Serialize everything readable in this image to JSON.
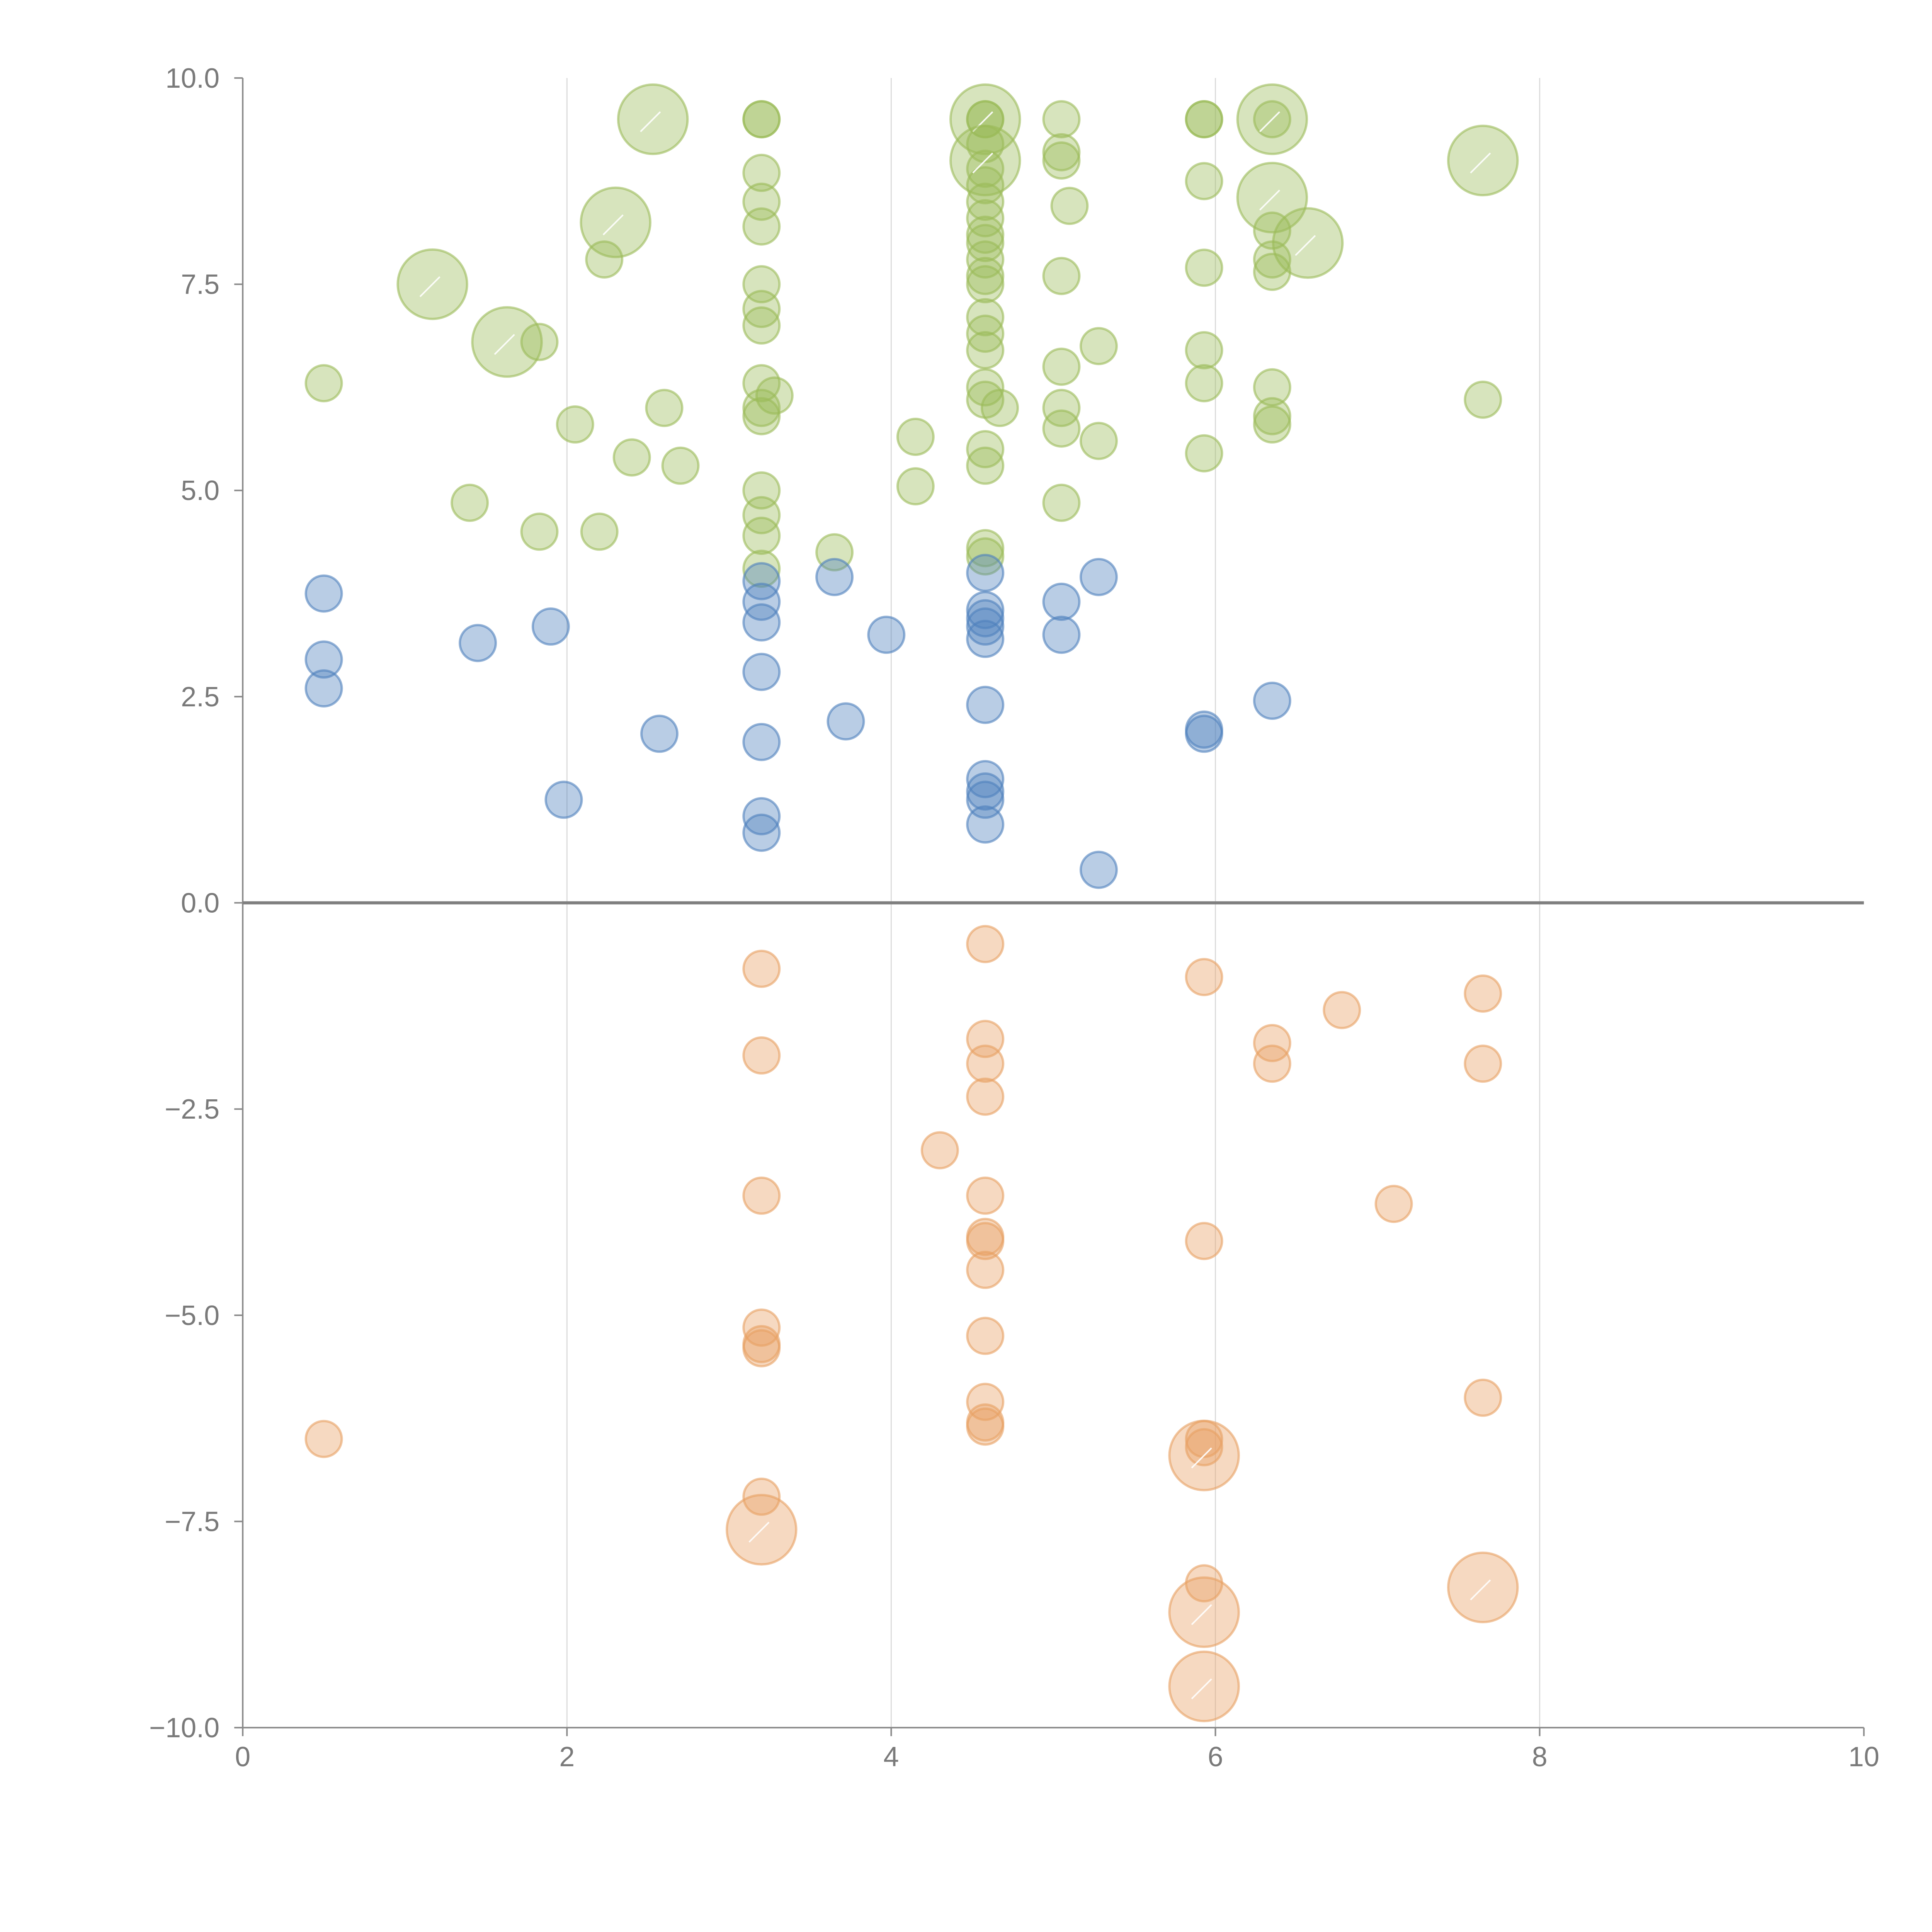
{
  "chart_data": {
    "type": "scatter",
    "title": "",
    "xlabel": "",
    "ylabel": "",
    "xlim": [
      0,
      10
    ],
    "ylim": [
      -10,
      10
    ],
    "x_ticks": [
      "0",
      "2",
      "4",
      "6",
      "8",
      "10"
    ],
    "y_ticks": [
      "10.0",
      "7.5",
      "5.0",
      "2.5",
      "0.0",
      "−2.5",
      "−5.0",
      "−7.5",
      "−10.0"
    ],
    "grid": "vertical lines at x = 2, 4, 6, 8",
    "baseline": 0,
    "colors": {
      "high": "#9bbb59",
      "mid": "#4f81bd",
      "low": "#e8a063"
    },
    "series": [
      {
        "color": "#9bbb59",
        "points": [
          [
            0.5,
            6.3
          ],
          [
            1.4,
            4.85
          ],
          [
            1.83,
            4.5
          ],
          [
            1.83,
            6.8
          ],
          [
            2.05,
            5.8
          ],
          [
            2.2,
            4.5
          ],
          [
            2.23,
            7.8
          ],
          [
            2.4,
            5.4
          ],
          [
            2.6,
            6.0
          ],
          [
            2.7,
            5.3
          ],
          [
            3.2,
            9.5
          ],
          [
            3.2,
            9.5
          ],
          [
            3.2,
            8.85
          ],
          [
            3.2,
            8.5
          ],
          [
            3.2,
            8.2
          ],
          [
            3.2,
            7.5
          ],
          [
            3.2,
            7.2
          ],
          [
            3.2,
            7.0
          ],
          [
            3.2,
            6.3
          ],
          [
            3.2,
            6.0
          ],
          [
            3.2,
            5.9
          ],
          [
            3.2,
            5.0
          ],
          [
            3.2,
            4.7
          ],
          [
            3.2,
            4.45
          ],
          [
            3.2,
            4.05
          ],
          [
            3.28,
            6.15
          ],
          [
            3.65,
            4.25
          ],
          [
            4.15,
            5.65
          ],
          [
            4.15,
            5.05
          ],
          [
            4.58,
            9.5
          ],
          [
            4.58,
            9.5
          ],
          [
            4.58,
            9.2
          ],
          [
            4.58,
            8.9
          ],
          [
            4.58,
            8.7
          ],
          [
            4.58,
            8.5
          ],
          [
            4.58,
            8.3
          ],
          [
            4.58,
            8.1
          ],
          [
            4.58,
            8.0
          ],
          [
            4.58,
            7.8
          ],
          [
            4.58,
            7.6
          ],
          [
            4.58,
            7.5
          ],
          [
            4.58,
            7.1
          ],
          [
            4.58,
            6.9
          ],
          [
            4.58,
            6.7
          ],
          [
            4.58,
            6.25
          ],
          [
            4.58,
            6.1
          ],
          [
            4.58,
            5.5
          ],
          [
            4.58,
            5.3
          ],
          [
            4.58,
            4.3
          ],
          [
            4.58,
            4.2
          ],
          [
            4.67,
            6.0
          ],
          [
            5.05,
            9.5
          ],
          [
            5.05,
            9.1
          ],
          [
            5.05,
            9.0
          ],
          [
            5.05,
            7.6
          ],
          [
            5.05,
            6.5
          ],
          [
            5.05,
            6.0
          ],
          [
            5.05,
            5.75
          ],
          [
            5.05,
            4.85
          ],
          [
            5.1,
            8.45
          ],
          [
            5.28,
            6.75
          ],
          [
            5.28,
            5.6
          ],
          [
            5.93,
            9.5
          ],
          [
            5.93,
            9.5
          ],
          [
            5.93,
            8.75
          ],
          [
            5.93,
            7.7
          ],
          [
            5.93,
            6.7
          ],
          [
            5.93,
            6.3
          ],
          [
            5.93,
            5.45
          ],
          [
            6.35,
            9.5
          ],
          [
            6.35,
            8.15
          ],
          [
            6.35,
            7.8
          ],
          [
            6.35,
            7.65
          ],
          [
            6.35,
            6.25
          ],
          [
            6.35,
            5.9
          ],
          [
            6.35,
            5.8
          ],
          [
            7.65,
            6.1
          ]
        ]
      },
      {
        "color": "#4f81bd",
        "points": [
          [
            0.5,
            3.75
          ],
          [
            0.5,
            2.95
          ],
          [
            0.5,
            2.6
          ],
          [
            1.45,
            3.15
          ],
          [
            1.9,
            3.35
          ],
          [
            1.98,
            1.25
          ],
          [
            2.57,
            2.05
          ],
          [
            3.2,
            3.9
          ],
          [
            3.2,
            3.65
          ],
          [
            3.2,
            3.4
          ],
          [
            3.2,
            2.8
          ],
          [
            3.2,
            1.95
          ],
          [
            3.2,
            1.05
          ],
          [
            3.2,
            0.85
          ],
          [
            3.65,
            3.95
          ],
          [
            3.72,
            2.2
          ],
          [
            3.97,
            3.25
          ],
          [
            4.58,
            4.0
          ],
          [
            4.58,
            3.55
          ],
          [
            4.58,
            3.45
          ],
          [
            4.58,
            3.35
          ],
          [
            4.58,
            3.2
          ],
          [
            4.58,
            2.4
          ],
          [
            4.58,
            1.5
          ],
          [
            4.58,
            1.35
          ],
          [
            4.58,
            1.25
          ],
          [
            4.58,
            0.95
          ],
          [
            5.05,
            3.65
          ],
          [
            5.05,
            3.25
          ],
          [
            5.28,
            3.95
          ],
          [
            5.28,
            0.4
          ],
          [
            5.93,
            2.1
          ],
          [
            5.93,
            2.05
          ],
          [
            6.35,
            2.45
          ]
        ]
      },
      {
        "color": "#e8a063",
        "points": [
          [
            0.5,
            -6.5
          ],
          [
            3.2,
            -0.8
          ],
          [
            3.2,
            -1.85
          ],
          [
            3.2,
            -3.55
          ],
          [
            3.2,
            -5.15
          ],
          [
            3.2,
            -5.35
          ],
          [
            3.2,
            -5.4
          ],
          [
            3.2,
            -7.2
          ],
          [
            4.3,
            -3.0
          ],
          [
            4.58,
            -0.5
          ],
          [
            4.58,
            -1.65
          ],
          [
            4.58,
            -1.95
          ],
          [
            4.58,
            -2.35
          ],
          [
            4.58,
            -3.55
          ],
          [
            4.58,
            -4.05
          ],
          [
            4.58,
            -4.1
          ],
          [
            4.58,
            -4.45
          ],
          [
            4.58,
            -5.25
          ],
          [
            4.58,
            -6.05
          ],
          [
            4.58,
            -6.3
          ],
          [
            4.58,
            -6.35
          ],
          [
            5.93,
            -0.9
          ],
          [
            5.93,
            -4.1
          ],
          [
            5.93,
            -6.5
          ],
          [
            5.93,
            -6.6
          ],
          [
            5.93,
            -8.25
          ],
          [
            6.35,
            -1.7
          ],
          [
            6.35,
            -1.95
          ],
          [
            6.78,
            -1.3
          ],
          [
            7.1,
            -3.65
          ],
          [
            7.65,
            -1.1
          ],
          [
            7.65,
            -1.95
          ],
          [
            7.65,
            -6.0
          ]
        ]
      }
    ],
    "highlighted": [
      {
        "x": 1.17,
        "y": 7.5,
        "color": "#9bbb59",
        "label": ""
      },
      {
        "x": 1.63,
        "y": 6.8,
        "color": "#9bbb59",
        "label": ""
      },
      {
        "x": 2.3,
        "y": 8.25,
        "color": "#9bbb59",
        "label": ""
      },
      {
        "x": 2.53,
        "y": 9.5,
        "color": "#9bbb59",
        "label": ""
      },
      {
        "x": 4.58,
        "y": 9.5,
        "color": "#9bbb59",
        "label": ""
      },
      {
        "x": 4.58,
        "y": 9.0,
        "color": "#9bbb59",
        "label": ""
      },
      {
        "x": 6.35,
        "y": 9.5,
        "color": "#9bbb59",
        "label": ""
      },
      {
        "x": 6.35,
        "y": 8.55,
        "color": "#9bbb59",
        "label": ""
      },
      {
        "x": 6.57,
        "y": 8.0,
        "color": "#9bbb59",
        "label": ""
      },
      {
        "x": 7.65,
        "y": 9.0,
        "color": "#9bbb59",
        "label": ""
      },
      {
        "x": 3.2,
        "y": -7.6,
        "color": "#e8a063",
        "label": ""
      },
      {
        "x": 5.93,
        "y": -6.7,
        "color": "#e8a063",
        "label": ""
      },
      {
        "x": 5.93,
        "y": -8.6,
        "color": "#e8a063",
        "label": ""
      },
      {
        "x": 5.93,
        "y": -9.5,
        "color": "#e8a063",
        "label": ""
      },
      {
        "x": 7.65,
        "y": -8.3,
        "color": "#e8a063",
        "label": ""
      }
    ]
  }
}
